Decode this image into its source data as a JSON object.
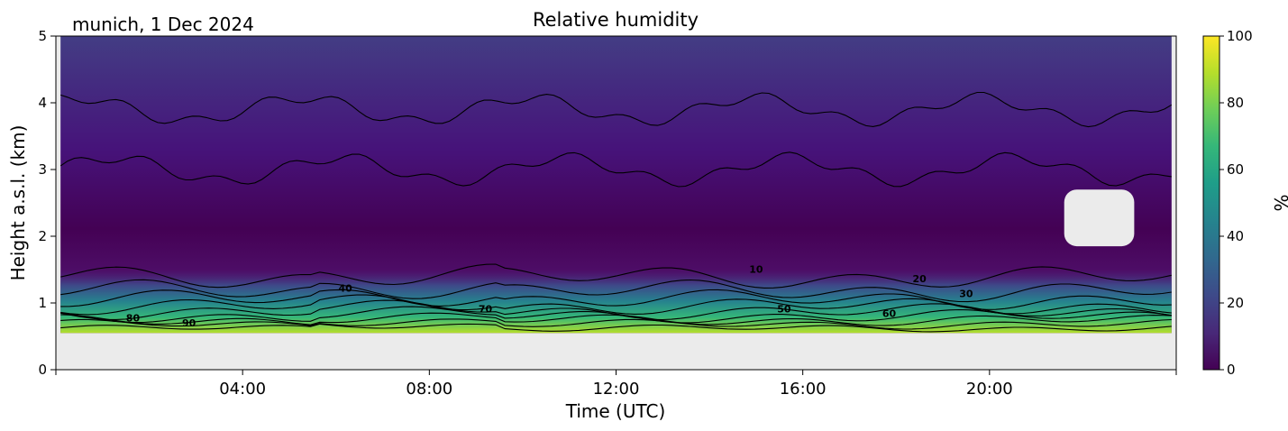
{
  "chart_data": {
    "type": "heatmap",
    "title": "Relative humidity",
    "site_label": "munich, 1 Dec 2024",
    "xlabel": "Time (UTC)",
    "ylabel": "Height a.s.l. (km)",
    "xlim_hours": [
      0,
      24
    ],
    "ylim_km": [
      0,
      5
    ],
    "x_ticks": [
      {
        "hour": 4,
        "label": "04:00"
      },
      {
        "hour": 8,
        "label": "08:00"
      },
      {
        "hour": 12,
        "label": "12:00"
      },
      {
        "hour": 16,
        "label": "16:00"
      },
      {
        "hour": 20,
        "label": "20:00"
      }
    ],
    "y_ticks": [
      {
        "value": 0,
        "label": "0"
      },
      {
        "value": 1,
        "label": "1"
      },
      {
        "value": 2,
        "label": "2"
      },
      {
        "value": 3,
        "label": "3"
      },
      {
        "value": 4,
        "label": "4"
      },
      {
        "value": 5,
        "label": "5"
      }
    ],
    "colorbar": {
      "label": "%",
      "range": [
        0,
        100
      ],
      "ticks": [
        {
          "value": 0,
          "label": "0"
        },
        {
          "value": 20,
          "label": "20"
        },
        {
          "value": 40,
          "label": "40"
        },
        {
          "value": 60,
          "label": "60"
        },
        {
          "value": 80,
          "label": "80"
        },
        {
          "value": 100,
          "label": "100"
        }
      ],
      "colormap": [
        "#440154",
        "#482878",
        "#3e4989",
        "#31688e",
        "#26828e",
        "#1f9e89",
        "#35b779",
        "#6ece58",
        "#b5de2b",
        "#fde725"
      ]
    },
    "data_extent": {
      "time_start_hour": 0.1,
      "time_end_hour": 23.9,
      "height_min_km": 0.55,
      "height_max_km": 5.0
    },
    "missing_data_color": "#ebebeb",
    "gap_region": {
      "time_start_hour": 21.6,
      "time_end_hour": 23.1,
      "height_min_km": 1.85,
      "height_max_km": 2.7
    },
    "contours": [
      {
        "value": 90,
        "label": "90",
        "label_time_hour": 2.85,
        "label_height_km": 0.65,
        "base_height_km": 0.62
      },
      {
        "value": 80,
        "label": "80",
        "label_time_hour": 1.65,
        "label_height_km": 0.72,
        "base_height_km": 0.68
      },
      {
        "value": 70,
        "label": "70",
        "label_time_hour": 9.2,
        "label_height_km": 0.86,
        "base_height_km": 0.74
      },
      {
        "value": 60,
        "label": "60",
        "label_time_hour": 17.85,
        "label_height_km": 0.79,
        "base_height_km": 0.8
      },
      {
        "value": 50,
        "label": "50",
        "label_time_hour": 15.6,
        "label_height_km": 0.86,
        "base_height_km": 0.87
      },
      {
        "value": 40,
        "label": "40",
        "label_time_hour": 6.2,
        "label_height_km": 1.17,
        "base_height_km": 0.95
      },
      {
        "value": 30,
        "label": "30",
        "label_time_hour": 19.5,
        "label_height_km": 1.09,
        "base_height_km": 1.05
      },
      {
        "value": 20,
        "label": "20",
        "label_time_hour": 18.5,
        "label_height_km": 1.31,
        "base_height_km": 1.18
      },
      {
        "value": 10,
        "label": "10",
        "label_time_hour": 15.0,
        "label_height_km": 1.45,
        "base_height_km": 1.38
      }
    ]
  }
}
